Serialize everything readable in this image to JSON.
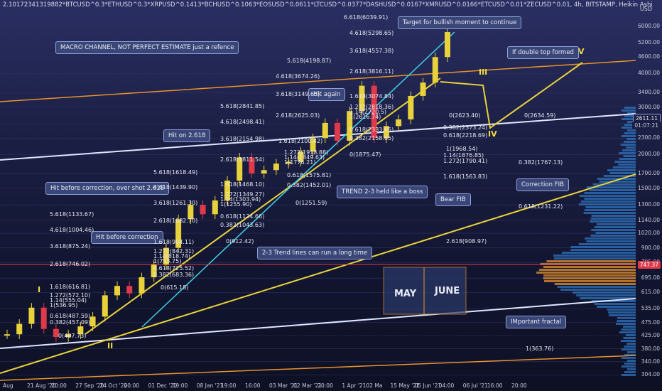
{
  "title": "2.10172341319882*BTCUSD^0.3*ETHUSD^0.3*XRPUSD^0.1413*BCHUSD^0.1063*EOSUSD^0.0611*LTCUSD^0.0377*DASHUSD^0.0167*XMRUSD^0.0166*ETCUSD^0.01*ZECUSD^0.01, 4h, BITSTAMP, Heikin Ashi",
  "currency": "USD",
  "colors": {
    "background": "#1b1f44",
    "candle_up": "#e8d23c",
    "candle_down": "#e03a4a",
    "channel_orange": "#e8922c",
    "trend_yellow": "#e8d23c",
    "channel_white": "#dfe6ff",
    "channel_cyan": "#3fd0e8",
    "price_line_red": "#e03a4a",
    "callout_bg": "#3a4677"
  },
  "annotations": [
    "MACRO CHANNEL, NOT PERFECT ESTIMATE just a refence",
    "Target for bullish moment to continue",
    "If double top formed",
    "Hit again",
    "Hit on 2.618",
    "Hit before correction, over shot 2.618",
    "TREND 2-3 held like a boss",
    "Bear FIB",
    "Correction FIB",
    "Hit before correction",
    "2-3 Trend lines can run a long time",
    "IMportant fractal"
  ],
  "fib_labels": [
    "6.618(6039.91)",
    "4.618(5298.65)",
    "3.618(4557.38)",
    "2.618(3816.11)",
    "1.618(3074.84)",
    "1.272(2818.36)",
    "1.14(2720.5)",
    "1(2616.74)",
    "0.618(2333.65)",
    "0.382(2158.65)",
    "0(1875.47)",
    "5.618(4198.87)",
    "4.618(3674.26)",
    "3.618(3149.65)",
    "2.618(2625.03)",
    "1.618(2100.42)",
    "1.272(1918.88)",
    "1.14(1849.63)",
    "1(1776.21)",
    "0.618(1575.81)",
    "0.382(1452.01)",
    "0(1251.59)",
    "5.618(2841.85)",
    "4.618(2498.41)",
    "3.618(2154.98)",
    "2.618(1811.54)",
    "1.618(1468.10)",
    "1.272(1349.27)",
    "1.14(1303.94)",
    "1(1255.90)",
    "0.618(1124.66)",
    "0.382(1043.63)",
    "0(912.42)",
    "5.618(1618.49)",
    "4.618(1439.90)",
    "3.618(1261.30)",
    "2.618(1082.70)",
    "1.618(904.11)",
    "1.272(842.31)",
    "1.14(818.74)",
    "1(793.75)",
    "0.618(725.52)",
    "0.382(683.36)",
    "0(615.18)",
    "5.618(1133.67)",
    "4.618(1004.46)",
    "3.618(875.24)",
    "2.618(746.02)",
    "1.618(616.81)",
    "1.272(572.10)",
    "1.14(555.04)",
    "1(536.95)",
    "0.618(487.59)",
    "0.382(457.09)",
    "0(407.73)",
    "0(2623.40)",
    "0.382(2373.24)",
    "0.618(2218.69)",
    "1(1968.54)",
    "1.14(1876.85)",
    "1.272(1790.41)",
    "1.618(1563.83)",
    "0(2634.59)",
    "0.382(1767.13)",
    "0.618(1231.22)",
    "1(363.76)",
    "2.618(908.97)"
  ],
  "waves": [
    "I",
    "II",
    "III",
    "IV",
    "V"
  ],
  "months": [
    "MAY",
    "JUNE"
  ],
  "price_labels": {
    "current": "2611.11",
    "countdown": "01:07:21",
    "red_line": "747.37"
  },
  "chart_data": {
    "type": "candlestick",
    "title": "2.10172341319882*BTCUSD^0.3*ETHUSD^0.3*XRPUSD^0.1413*BCHUSD^0.1063*EOSUSD^0.0611*LTCUSD^0.0377*DASHUSD^0.0167*XMRUSD^0.0166*ETCUSD^0.01*ZECUSD^0.01, 4h, BITSTAMP, Heikin Ashi",
    "y_scale": "log",
    "y_ticks": [
      6000,
      5200,
      4600,
      4000,
      3400,
      3000,
      2600,
      2300,
      2000,
      1700,
      1500,
      1300,
      1140,
      1020,
      900,
      795,
      695,
      615,
      535,
      475,
      425,
      380,
      340,
      304
    ],
    "y_tick_labels": [
      "6000.00",
      "5200.00",
      "4600.00",
      "4000.00",
      "3400.00",
      "3000.00",
      "2600.00",
      "2300.00",
      "2000.00",
      "1700.00",
      "1500.00",
      "1300.00",
      "1140.00",
      "1020.00",
      "900.00",
      "795.00",
      "695.00",
      "615.00",
      "535.00",
      "475.00",
      "425.00",
      "380.00",
      "340.00",
      "304.00"
    ],
    "x_tick_labels": [
      "Aug",
      "21 Aug '20",
      "20:00",
      "27 Sep '20",
      "24 Oct '20",
      "20:00",
      "01 Dec '20",
      "19:00",
      "08 Jan '21",
      "19:00",
      "16:00",
      "03 Mar '21",
      "02 Mar '21",
      "20:00",
      "1 Apr '21",
      "02 Ma",
      "15 May '21",
      "05 Jun '21",
      "04:00",
      "06 Jul '21",
      "16:00",
      "20:00"
    ],
    "ylim": [
      290,
      6800
    ],
    "series": [
      {
        "name": "",
        "x": [
          "2020-08-01",
          "2020-08-10",
          "2020-08-21",
          "2020-09-01",
          "2020-09-10",
          "2020-09-27",
          "2020-10-10",
          "2020-10-24",
          "2020-11-05",
          "2020-11-15",
          "2020-11-25",
          "2020-12-01",
          "2020-12-10",
          "2020-12-20",
          "2021-01-01",
          "2021-01-08",
          "2021-01-15",
          "2021-01-25",
          "2021-02-05",
          "2021-02-15",
          "2021-02-22",
          "2021-03-01",
          "2021-03-10",
          "2021-03-20",
          "2021-04-01",
          "2021-04-10",
          "2021-04-16",
          "2021-04-25",
          "2021-05-05",
          "2021-05-12",
          "2021-05-19",
          "2021-05-25",
          "2021-06-01",
          "2021-06-08",
          "2021-06-15",
          "2021-06-22",
          "2021-06-28"
        ],
        "values": [
          430,
          470,
          540,
          450,
          420,
          430,
          460,
          500,
          600,
          650,
          610,
          700,
          780,
          900,
          1150,
          1300,
          1200,
          1350,
          1600,
          1950,
          1700,
          1750,
          1850,
          1880,
          2050,
          2300,
          2620,
          2250,
          2900,
          3600,
          2300,
          2550,
          2700,
          3300,
          3700,
          4600,
          5700
        ]
      }
    ]
  }
}
